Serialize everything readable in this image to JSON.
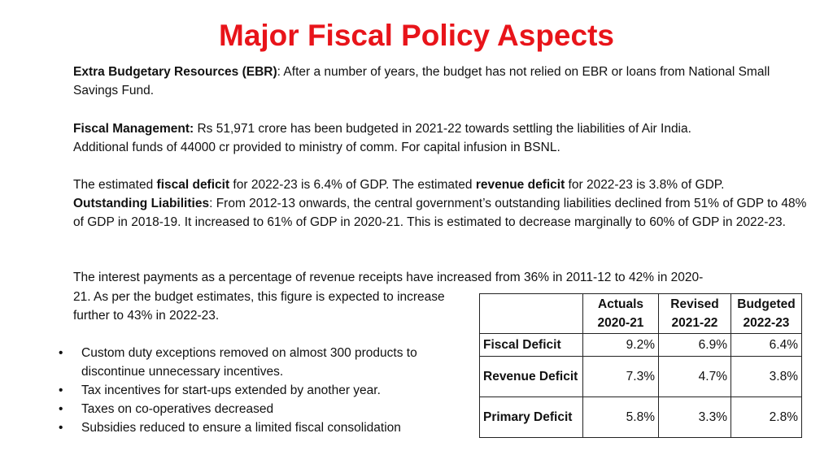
{
  "title": "Major Fiscal Policy Aspects",
  "ebr": {
    "label": "Extra Budgetary Resources (EBR)",
    "text": ":  After a number of years, the budget has not relied on EBR or loans from National Small Savings Fund."
  },
  "fiscal_management": {
    "label": "Fiscal Management:",
    "text": "  Rs 51,971 crore has been budgeted in 2021-22 towards settling the liabilities of Air India. Additional funds of 44000 cr provided to ministry of comm. For capital infusion in BSNL."
  },
  "deficits": {
    "t1": "The estimated ",
    "b1": "fiscal deficit",
    "t2": " for 2022-23 is 6.4% of GDP. The estimated ",
    "b2": "revenue deficit",
    "t3": " for 2022-23 is 3.8% of GDP."
  },
  "liabilities": {
    "label": "Outstanding Liabilities",
    "text": ": From 2012-13 onwards, the central government’s outstanding liabilities declined from 51% of GDP to 48% of GDP in 2018-19.  It increased to 61% of GDP in 2020-21.  This is estimated to decrease marginally to 60% of GDP in 2022-23."
  },
  "interest": {
    "line1": "The interest payments as a percentage of revenue receipts have increased from 36% in 2011-12 to 42% in 2020-",
    "line2": "21.  As per the budget estimates, this figure is expected to increase further to 43% in 2022-23."
  },
  "bullets": [
    "Custom duty exceptions removed on almost 300 products to discontinue unnecessary incentives.",
    "Tax incentives for start-ups extended by another year.",
    "Taxes on co-operatives decreased",
    "Subsidies reduced to ensure a limited fiscal consolidation"
  ],
  "bullet_char": "•",
  "table": {
    "headers": [
      {
        "line1": "Actuals",
        "line2": "2020-21"
      },
      {
        "line1": "Revised",
        "line2": "2021-22"
      },
      {
        "line1": "Budgeted",
        "line2": "2022-23"
      }
    ],
    "rows": [
      {
        "label": "Fiscal Deficit",
        "values": [
          "9.2%",
          "6.9%",
          "6.4%"
        ]
      },
      {
        "label": "Revenue Deficit",
        "values": [
          "7.3%",
          "4.7%",
          "3.8%"
        ]
      },
      {
        "label": "Primary Deficit",
        "values": [
          "5.8%",
          "3.3%",
          "2.8%"
        ]
      }
    ]
  }
}
